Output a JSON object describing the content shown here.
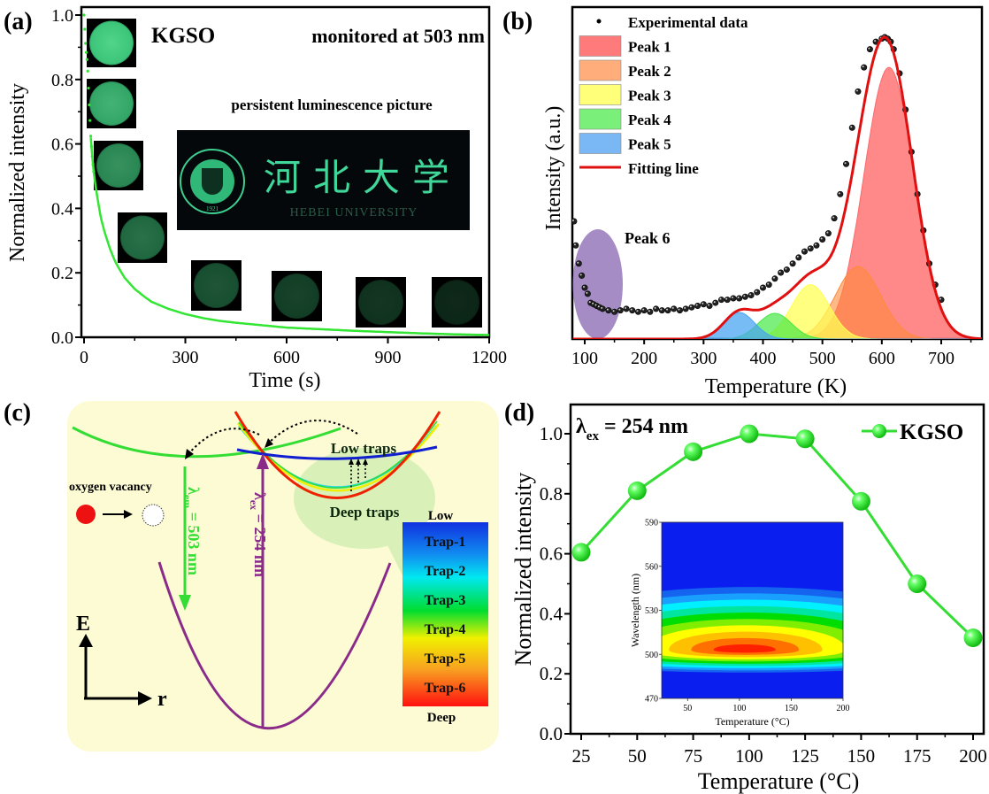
{
  "figure": {
    "panel_labels": [
      "(a)",
      "(b)",
      "(c)",
      "(d)"
    ]
  },
  "chart_data": [
    {
      "panel": "(a)",
      "type": "scatter",
      "title": "",
      "xlabel": "Time (s)",
      "ylabel": "Normalized intensity",
      "xlim": [
        0,
        1200
      ],
      "ylim": [
        0,
        1.0
      ],
      "xticks": [
        0,
        300,
        600,
        900,
        1200
      ],
      "xtick_labels": [
        "0",
        "300",
        "600",
        "900",
        "1200"
      ],
      "yticks": [
        0.0,
        0.2,
        0.4,
        0.6,
        0.8,
        1.0
      ],
      "ytick_labels": [
        "0.0",
        "0.2",
        "0.4",
        "0.6",
        "0.8",
        "1.0"
      ],
      "series": [
        {
          "name": "KGSO decay",
          "color": "#33e633",
          "x": [
            0,
            5,
            10,
            15,
            20,
            25,
            30,
            40,
            50,
            60,
            75,
            90,
            100,
            120,
            150,
            180,
            200,
            250,
            300,
            350,
            400,
            450,
            500,
            600,
            700,
            800,
            900,
            1000,
            1100,
            1200
          ],
          "y": [
            1.0,
            0.9,
            0.85,
            0.73,
            0.62,
            0.55,
            0.5,
            0.43,
            0.37,
            0.33,
            0.28,
            0.24,
            0.22,
            0.185,
            0.15,
            0.125,
            0.11,
            0.088,
            0.072,
            0.06,
            0.051,
            0.045,
            0.04,
            0.03,
            0.025,
            0.02,
            0.016,
            0.012,
            0.009,
            0.007
          ]
        }
      ],
      "annotations": {
        "sample": "KGSO",
        "monitor": "monitored at 503 nm",
        "picture_caption": "persistent luminescence picture",
        "photo_text_cn": "河北大学",
        "photo_text_en": "HEBEI UNIVERSITY",
        "seal_year": "1921"
      },
      "photo_brightness": [
        0.95,
        0.8,
        0.65,
        0.5,
        0.38,
        0.3,
        0.24,
        0.18
      ]
    },
    {
      "panel": "(b)",
      "type": "area",
      "title": "",
      "xlabel": "Temperature (K)",
      "ylabel": "Intensity (a.u.)",
      "xlim": [
        80,
        780
      ],
      "ylim": [
        0,
        1.0
      ],
      "xticks": [
        100,
        200,
        300,
        400,
        500,
        600,
        700
      ],
      "xtick_labels": [
        "100",
        "200",
        "300",
        "400",
        "500",
        "600",
        "700"
      ],
      "legend": [
        {
          "label": "Experimental data",
          "kind": "dot",
          "color": "#000000"
        },
        {
          "label": "Peak 1",
          "kind": "fill",
          "color": "#ff7b7b"
        },
        {
          "label": "Peak 2",
          "kind": "fill",
          "color": "#ffad7a"
        },
        {
          "label": "Peak 3",
          "kind": "fill",
          "color": "#ffff7a"
        },
        {
          "label": "Peak 4",
          "kind": "fill",
          "color": "#7aef7a"
        },
        {
          "label": "Peak 5",
          "kind": "fill",
          "color": "#7ab8f5"
        },
        {
          "label": "Fitting line",
          "kind": "line",
          "color": "#e01010"
        }
      ],
      "legend_position": "top-left",
      "peaks": [
        {
          "name": "Peak 1",
          "center": 612,
          "height": 0.9,
          "sigma": 42,
          "color": "#ff6a6a",
          "opacity": 0.8
        },
        {
          "name": "Peak 2",
          "center": 560,
          "height": 0.24,
          "sigma": 38,
          "color": "#ff8a3a",
          "opacity": 0.6
        },
        {
          "name": "Peak 3",
          "center": 480,
          "height": 0.18,
          "sigma": 32,
          "color": "#ffff55",
          "opacity": 0.75
        },
        {
          "name": "Peak 4",
          "center": 420,
          "height": 0.085,
          "sigma": 28,
          "color": "#44e844",
          "opacity": 0.7
        },
        {
          "name": "Peak 5",
          "center": 360,
          "height": 0.088,
          "sigma": 26,
          "color": "#4aa6f0",
          "opacity": 0.75
        }
      ],
      "experimental": {
        "x": [
          82,
          85,
          90,
          95,
          100,
          105,
          110,
          115,
          120,
          125,
          130,
          140,
          150,
          160,
          170,
          180,
          190,
          200,
          210,
          220,
          230,
          240,
          250,
          260,
          270,
          280,
          290,
          300,
          310,
          320,
          330,
          340,
          350,
          360,
          370,
          380,
          390,
          400,
          410,
          420,
          430,
          440,
          450,
          460,
          470,
          480,
          490,
          500,
          510,
          520,
          530,
          540,
          550,
          560,
          570,
          580,
          590,
          600,
          605,
          610,
          615,
          620,
          630,
          640,
          650,
          660,
          670,
          680,
          690,
          700
        ],
        "y": [
          0.39,
          0.31,
          0.25,
          0.21,
          0.17,
          0.15,
          0.12,
          0.115,
          0.11,
          0.105,
          0.1,
          0.095,
          0.09,
          0.095,
          0.1,
          0.095,
          0.09,
          0.095,
          0.09,
          0.1,
          0.095,
          0.095,
          0.1,
          0.095,
          0.1,
          0.105,
          0.11,
          0.115,
          0.11,
          0.12,
          0.13,
          0.13,
          0.135,
          0.135,
          0.14,
          0.145,
          0.155,
          0.17,
          0.18,
          0.2,
          0.22,
          0.23,
          0.25,
          0.27,
          0.29,
          0.3,
          0.31,
          0.33,
          0.35,
          0.4,
          0.48,
          0.58,
          0.7,
          0.82,
          0.9,
          0.96,
          0.985,
          0.995,
          1.0,
          0.995,
          0.985,
          0.96,
          0.88,
          0.76,
          0.62,
          0.48,
          0.36,
          0.25,
          0.18,
          0.13
        ]
      },
      "peak6": {
        "label": "Peak 6",
        "color": "#9b7fbf",
        "center_x": 122,
        "x_halfwidth": 42
      }
    },
    {
      "panel": "(d)",
      "type": "line",
      "title": "",
      "xlabel": "Temperature (°C)",
      "ylabel": "Normalized intensity",
      "xlim": [
        20,
        203
      ],
      "ylim": [
        0,
        1.08
      ],
      "xticks": [
        25,
        50,
        75,
        100,
        125,
        150,
        175,
        200
      ],
      "xtick_labels": [
        "25",
        "50",
        "75",
        "100",
        "125",
        "150",
        "175",
        "200"
      ],
      "yticks": [
        0.0,
        0.2,
        0.4,
        0.6,
        0.8,
        1.0
      ],
      "ytick_labels": [
        "0.0",
        "0.2",
        "0.4",
        "0.6",
        "0.8",
        "1.0"
      ],
      "series": [
        {
          "name": "KGSO",
          "color": "#33dd33",
          "x": [
            25,
            50,
            75,
            100,
            125,
            150,
            175,
            200
          ],
          "y": [
            0.605,
            0.81,
            0.94,
            1.0,
            0.983,
            0.775,
            0.5,
            0.32
          ]
        }
      ],
      "legend_position": "top-right",
      "annotation": {
        "lambda": "λ",
        "sub": "ex",
        "rest": " = 254 nm"
      },
      "inset": {
        "type": "heatmap",
        "xlabel": "Temperature (°C)",
        "ylabel": "Wavelength (nm)",
        "xlim": [
          25,
          200
        ],
        "ylim": [
          470,
          590
        ],
        "xticks": [
          50,
          100,
          150,
          200
        ],
        "xtick_labels": [
          "50",
          "100",
          "150",
          "200"
        ],
        "yticks": [
          470,
          500,
          530,
          560,
          590
        ],
        "ytick_labels": [
          "470",
          "500",
          "530",
          "560",
          "590"
        ],
        "peak_wavelength": 503,
        "peak_temperature": 105,
        "colormap": [
          "#0a1ef0",
          "#1464f0",
          "#19a0ff",
          "#00f0ff",
          "#00e6a0",
          "#00dd00",
          "#80ee00",
          "#ffff00",
          "#ffc000",
          "#ff7000",
          "#ff2000"
        ]
      }
    }
  ],
  "diagram_c": {
    "oxygen_vacancy": "oxygen vacancy",
    "low_traps": "Low traps",
    "deep_traps": "Deep traps",
    "em_label": {
      "lambda": "λ",
      "sub": "em",
      "rest": " = 503 nm"
    },
    "ex_label": {
      "lambda": "λ",
      "sub": "ex",
      "rest": " = 254 nm"
    },
    "axis_E": "E",
    "axis_r": "r",
    "scale_low": "Low",
    "scale_deep": "Deep",
    "traps": [
      "Trap-1",
      "Trap-2",
      "Trap-3",
      "Trap-4",
      "Trap-5",
      "Trap-6"
    ],
    "colors": {
      "background": "#fdfbd4",
      "emission": "#33dd33",
      "excitation": "#8a2b8a",
      "trap_bubble": "#d9f0b8",
      "vacancy_fill": "#ee1111"
    }
  }
}
